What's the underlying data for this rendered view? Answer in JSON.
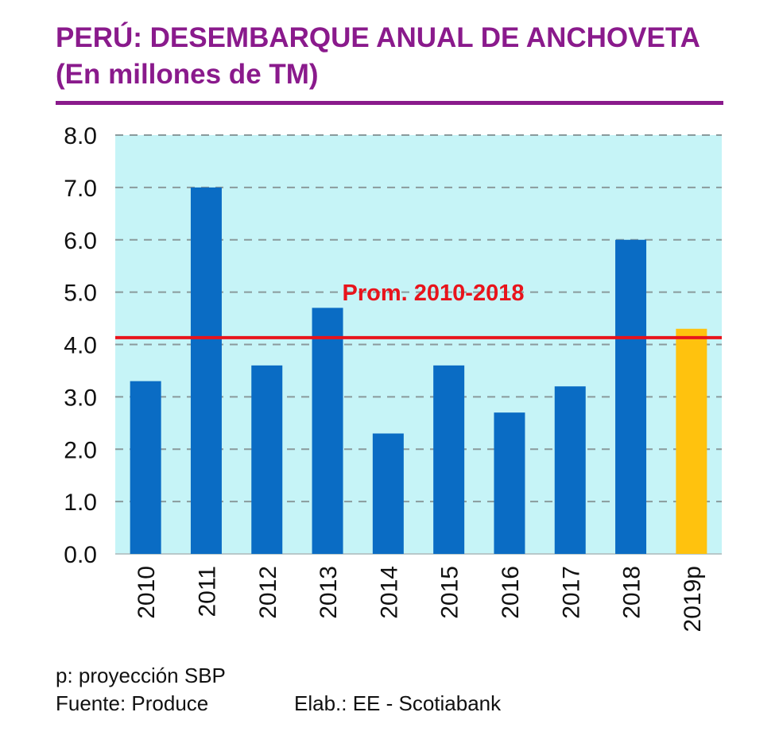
{
  "header": {
    "title": "PERÚ: DESEMBARQUE ANUAL DE ANCHOVETA",
    "subtitle": "(En millones de TM)"
  },
  "footer": {
    "note": "p: proyección SBP",
    "source": "Fuente: Produce",
    "elaboration": "Elab.: EE - Scotiabank"
  },
  "colors": {
    "title": "#8a1a8c",
    "plot_background": "#c6f4f7",
    "bar": "#0a6cc4",
    "projection_bar": "#ffc20e",
    "average_line": "#e8141c",
    "grid": "#8a9a9c"
  },
  "chart_data": {
    "type": "bar",
    "title": "PERÚ: DESEMBARQUE ANUAL DE ANCHOVETA",
    "subtitle": "(En millones de TM)",
    "xlabel": "",
    "ylabel": "",
    "categories": [
      "2010",
      "2011",
      "2012",
      "2013",
      "2014",
      "2015",
      "2016",
      "2017",
      "2018",
      "2019p"
    ],
    "values": [
      3.3,
      7.0,
      3.6,
      4.7,
      2.3,
      3.6,
      2.7,
      3.2,
      6.0,
      4.3
    ],
    "projected": [
      false,
      false,
      false,
      false,
      false,
      false,
      false,
      false,
      false,
      true
    ],
    "ylim": [
      0,
      8
    ],
    "yticks": [
      "0.0",
      "1.0",
      "2.0",
      "3.0",
      "4.0",
      "5.0",
      "6.0",
      "7.0",
      "8.0"
    ],
    "grid": "horizontal dashed",
    "reference_line": {
      "label": "Prom. 2010-2018",
      "value": 4.13
    },
    "legend": "none"
  }
}
